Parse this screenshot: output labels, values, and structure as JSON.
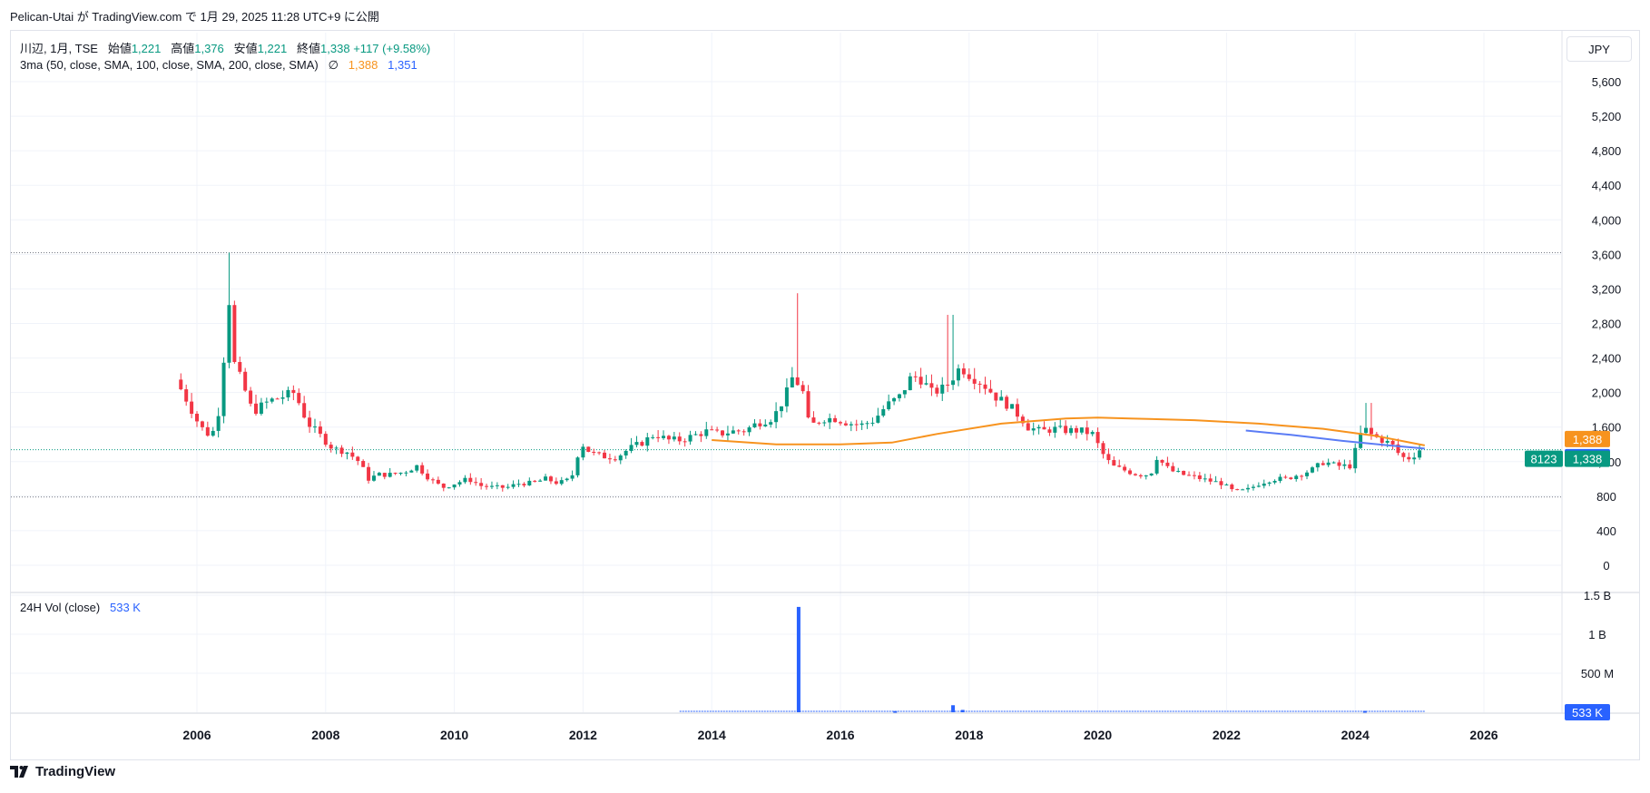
{
  "header": {
    "publish_line": "Pelican-Utai が TradingView.com で 1月 29, 2025 11:28 UTC+9 に公開"
  },
  "legend": {
    "symbol": "川辺, 1月, TSE",
    "open_label": "始値",
    "open": "1,221",
    "high_label": "高値",
    "high": "1,376",
    "low_label": "安値",
    "low": "1,221",
    "close_label": "終値",
    "close": "1,338",
    "change": "+117 (+9.58%)",
    "ma_label": "3ma (50, close, SMA, 100, close, SMA, 200, close, SMA)",
    "ma_hidden_icon": "∅",
    "ma_value_1": "1,388",
    "ma_value_2": "1,351",
    "vol_label": "24H Vol (close)",
    "vol_value": "533 K"
  },
  "currency": "JPY",
  "price_badges": {
    "ticker": "8123",
    "last": "1,338",
    "ma1": "1,388",
    "ma2": "1,351",
    "vol": "533 K"
  },
  "footer": {
    "brand": "TradingView"
  },
  "colors": {
    "up": "#089981",
    "down": "#f23645",
    "ma1": "#f7931e",
    "ma2": "#5b7cf5",
    "volume": "#2962ff",
    "grid": "#f0f3fa",
    "dotted": "#787b86"
  },
  "chart_data": {
    "type": "candlestick",
    "title": "川辺, 1月, TSE",
    "ylim": [
      0,
      5800
    ],
    "y_ticks": [
      "5,600",
      "5,200",
      "4,800",
      "4,400",
      "4,000",
      "3,600",
      "3,200",
      "2,800",
      "2,400",
      "2,000",
      "1,600",
      "1,200",
      "800",
      "400",
      "0"
    ],
    "y_tick_values": [
      5600,
      5200,
      4800,
      4400,
      4000,
      3600,
      3200,
      2800,
      2400,
      2000,
      1600,
      1200,
      800,
      400,
      0
    ],
    "x_ticks": [
      "2006",
      "2008",
      "2010",
      "2012",
      "2014",
      "2016",
      "2018",
      "2020",
      "2022",
      "2024",
      "2026"
    ],
    "x_tick_values": [
      2006,
      2008,
      2010,
      2012,
      2014,
      2016,
      2018,
      2020,
      2022,
      2024,
      2026
    ],
    "reference_lines": [
      3620,
      790,
      1338
    ],
    "price_path": [
      [
        2005.75,
        2150
      ],
      [
        2005.9,
        1950
      ],
      [
        2006.0,
        1800
      ],
      [
        2006.1,
        1650
      ],
      [
        2006.2,
        1550
      ],
      [
        2006.3,
        1500
      ],
      [
        2006.4,
        1650
      ],
      [
        2006.5,
        2400
      ],
      [
        2006.58,
        3100
      ],
      [
        2006.67,
        2300
      ],
      [
        2006.8,
        2100
      ],
      [
        2006.9,
        1850
      ],
      [
        2007.0,
        1800
      ],
      [
        2007.2,
        1900
      ],
      [
        2007.4,
        1950
      ],
      [
        2007.6,
        2000
      ],
      [
        2007.8,
        1650
      ],
      [
        2008.0,
        1500
      ],
      [
        2008.2,
        1350
      ],
      [
        2008.4,
        1320
      ],
      [
        2008.6,
        1200
      ],
      [
        2008.75,
        1000
      ],
      [
        2008.9,
        1050
      ],
      [
        2009.1,
        1050
      ],
      [
        2009.3,
        1080
      ],
      [
        2009.5,
        1150
      ],
      [
        2009.7,
        1000
      ],
      [
        2009.9,
        900
      ],
      [
        2010.1,
        950
      ],
      [
        2010.3,
        1000
      ],
      [
        2010.5,
        920
      ],
      [
        2010.7,
        900
      ],
      [
        2010.9,
        900
      ],
      [
        2011.1,
        950
      ],
      [
        2011.3,
        950
      ],
      [
        2011.5,
        1000
      ],
      [
        2011.7,
        950
      ],
      [
        2011.9,
        1000
      ],
      [
        2012.05,
        1420
      ],
      [
        2012.2,
        1300
      ],
      [
        2012.4,
        1260
      ],
      [
        2012.6,
        1250
      ],
      [
        2012.8,
        1350
      ],
      [
        2013.0,
        1420
      ],
      [
        2013.2,
        1520
      ],
      [
        2013.4,
        1450
      ],
      [
        2013.6,
        1450
      ],
      [
        2013.8,
        1500
      ],
      [
        2014.0,
        1550
      ],
      [
        2014.2,
        1520
      ],
      [
        2014.4,
        1550
      ],
      [
        2014.6,
        1560
      ],
      [
        2014.8,
        1650
      ],
      [
        2015.0,
        1700
      ],
      [
        2015.1,
        1780
      ],
      [
        2015.25,
        2000
      ],
      [
        2015.35,
        2200
      ],
      [
        2015.5,
        2000
      ],
      [
        2015.6,
        1600
      ],
      [
        2015.8,
        1700
      ],
      [
        2016.0,
        1700
      ],
      [
        2016.2,
        1650
      ],
      [
        2016.4,
        1620
      ],
      [
        2016.6,
        1680
      ],
      [
        2016.8,
        1850
      ],
      [
        2017.0,
        1950
      ],
      [
        2017.2,
        2200
      ],
      [
        2017.35,
        2150
      ],
      [
        2017.5,
        2000
      ],
      [
        2017.7,
        2050
      ],
      [
        2017.85,
        2200
      ],
      [
        2017.95,
        2300
      ],
      [
        2018.1,
        2200
      ],
      [
        2018.3,
        2100
      ],
      [
        2018.5,
        1950
      ],
      [
        2018.7,
        1850
      ],
      [
        2018.9,
        1700
      ],
      [
        2019.0,
        1600
      ],
      [
        2019.2,
        1550
      ],
      [
        2019.4,
        1580
      ],
      [
        2019.6,
        1560
      ],
      [
        2019.8,
        1560
      ],
      [
        2020.0,
        1520
      ],
      [
        2020.15,
        1300
      ],
      [
        2020.3,
        1150
      ],
      [
        2020.5,
        1100
      ],
      [
        2020.7,
        1050
      ],
      [
        2020.9,
        1050
      ],
      [
        2021.0,
        1250
      ],
      [
        2021.2,
        1100
      ],
      [
        2021.4,
        1050
      ],
      [
        2021.6,
        1020
      ],
      [
        2021.8,
        980
      ],
      [
        2022.0,
        950
      ],
      [
        2022.2,
        850
      ],
      [
        2022.4,
        870
      ],
      [
        2022.6,
        950
      ],
      [
        2022.8,
        1000
      ],
      [
        2023.0,
        1000
      ],
      [
        2023.2,
        1050
      ],
      [
        2023.4,
        1100
      ],
      [
        2023.6,
        1200
      ],
      [
        2023.8,
        1150
      ],
      [
        2024.0,
        1150
      ],
      [
        2024.12,
        1400
      ],
      [
        2024.2,
        1600
      ],
      [
        2024.35,
        1500
      ],
      [
        2024.5,
        1450
      ],
      [
        2024.65,
        1400
      ],
      [
        2024.8,
        1250
      ],
      [
        2024.95,
        1240
      ],
      [
        2025.08,
        1338
      ]
    ],
    "ma_series": [
      {
        "name": "SMA 50",
        "color": "#f7931e",
        "points": [
          [
            2014.0,
            1450
          ],
          [
            2015.0,
            1400
          ],
          [
            2016.0,
            1400
          ],
          [
            2016.8,
            1420
          ],
          [
            2017.5,
            1520
          ],
          [
            2018.5,
            1640
          ],
          [
            2019.5,
            1700
          ],
          [
            2020.0,
            1710
          ],
          [
            2020.5,
            1700
          ],
          [
            2021.5,
            1680
          ],
          [
            2022.5,
            1640
          ],
          [
            2023.5,
            1580
          ],
          [
            2024.3,
            1500
          ],
          [
            2025.08,
            1388
          ]
        ]
      },
      {
        "name": "SMA 100",
        "color": "#5b7cf5",
        "points": [
          [
            2022.3,
            1560
          ],
          [
            2023.0,
            1510
          ],
          [
            2023.8,
            1440
          ],
          [
            2024.5,
            1390
          ],
          [
            2025.08,
            1351
          ]
        ]
      }
    ],
    "volume": {
      "label": "24H Vol (close)",
      "y_ticks": [
        "1.5 B",
        "1 B",
        "500 M"
      ],
      "y_tick_values": [
        1500000000,
        1000000000,
        500000000
      ],
      "ylim": [
        0,
        1500000000
      ],
      "bars": [
        [
          2015.35,
          1350000000
        ],
        [
          2017.75,
          90000000
        ],
        [
          2017.9,
          30000000
        ],
        [
          2016.85,
          15000000
        ],
        [
          2024.15,
          18000000
        ]
      ],
      "baseline_start": 2013.5,
      "baseline_end": 2025.08
    }
  }
}
